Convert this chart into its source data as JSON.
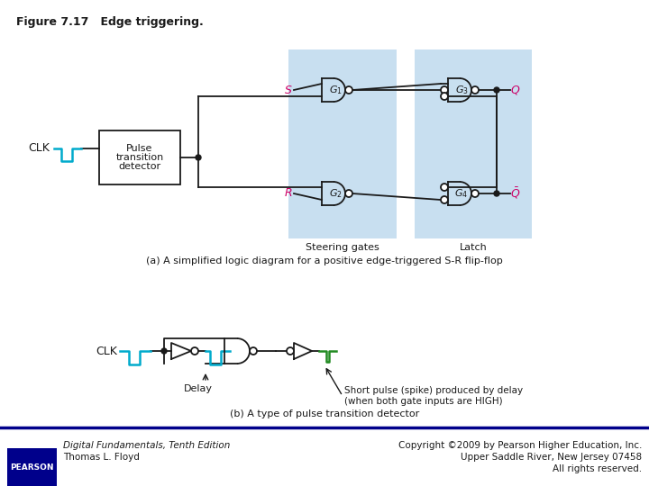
{
  "title": "Figure 7.17   Edge triggering.",
  "background_color": "#ffffff",
  "light_blue": "#c8dff0",
  "cyan_color": "#00aacc",
  "green_color": "#228B22",
  "pink_color": "#cc0066",
  "dark_color": "#1a1a1a",
  "caption_a": "(a) A simplified logic diagram for a positive edge-triggered S-R flip-flop",
  "caption_b": "(b) A type of pulse transition detector",
  "steering_label": "Steering gates",
  "latch_label": "Latch",
  "footer_left_line1": "Digital Fundamentals, Tenth Edition",
  "footer_left_line2": "Thomas L. Floyd",
  "footer_right_line1": "Copyright ©2009 by Pearson Higher Education, Inc.",
  "footer_right_line2": "Upper Saddle River, New Jersey 07458",
  "footer_right_line3": "All rights reserved.",
  "delay_label": "Delay",
  "short_pulse_label": "Short pulse (spike) produced by delay\n(when both gate inputs are HIGH)"
}
